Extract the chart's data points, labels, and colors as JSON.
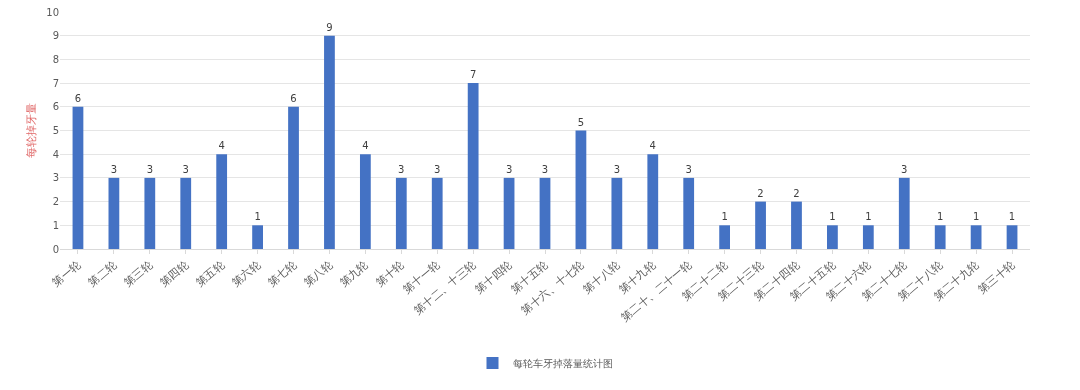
{
  "chart_data": {
    "type": "bar",
    "ylabel": "每轮掉牙量",
    "categories": [
      "第一轮",
      "第二轮",
      "第三轮",
      "第四轮",
      "第五轮",
      "第六轮",
      "第七轮",
      "第八轮",
      "第九轮",
      "第十轮",
      "第十一轮",
      "第十二、十三轮",
      "第十四轮",
      "第十五轮",
      "第十六、十七轮",
      "第十八轮",
      "第十九轮",
      "第二十、二十一轮",
      "第二十二轮",
      "第二十三轮",
      "第二十四轮",
      "第二十五轮",
      "第二十六轮",
      "第二十七轮",
      "第二十八轮",
      "第二十九轮",
      "第三十轮"
    ],
    "series": [
      {
        "name": "每轮车牙掉落量统计图",
        "color": "#4472c4",
        "values": [
          6,
          3,
          3,
          3,
          4,
          1,
          6,
          9,
          4,
          3,
          3,
          7,
          3,
          3,
          5,
          3,
          4,
          3,
          1,
          2,
          2,
          1,
          1,
          3,
          1,
          1,
          1
        ]
      }
    ],
    "ylim": [
      0,
      10
    ],
    "yticks": [
      0,
      1,
      2,
      3,
      4,
      5,
      6,
      7,
      8,
      9,
      10
    ],
    "grid": "y",
    "legend": "bottom",
    "data_labels": true
  }
}
